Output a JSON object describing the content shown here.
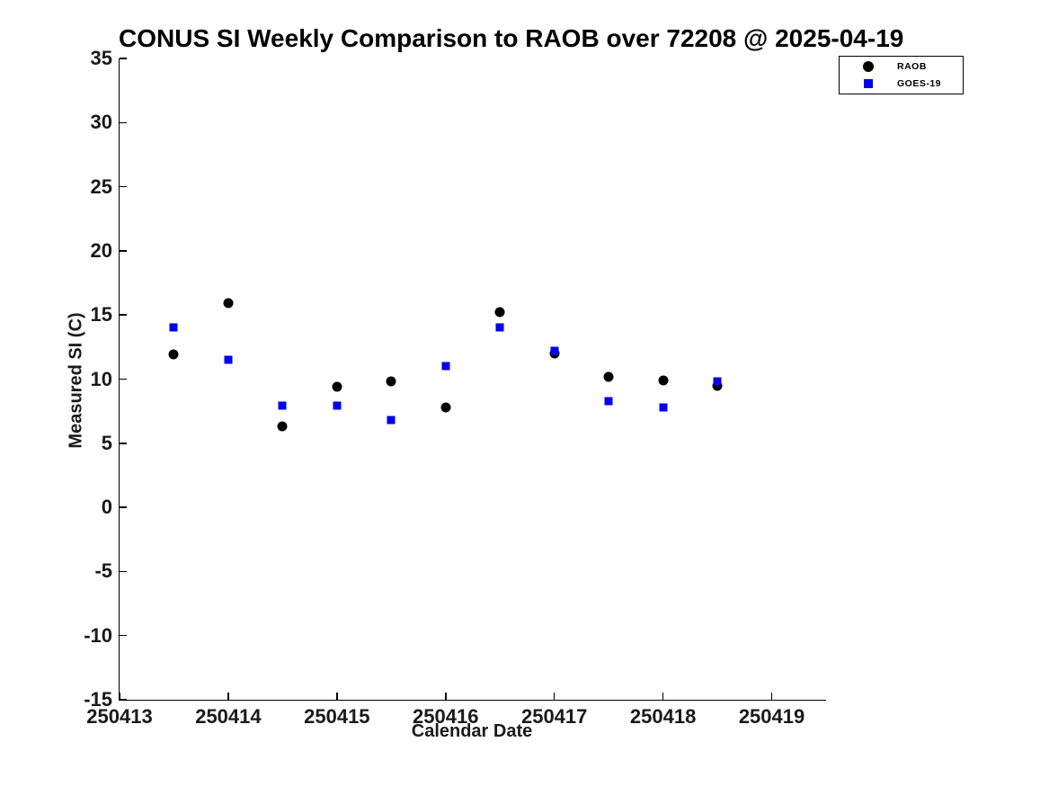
{
  "chart_data": {
    "type": "scatter",
    "title": "CONUS SI Weekly Comparison to RAOB over 72208 @ 2025-04-19",
    "xlabel": "Calendar Date",
    "ylabel": "Measured SI (C)",
    "xlim": [
      250413,
      250419.5
    ],
    "ylim": [
      -15,
      35
    ],
    "x_ticks": [
      250413,
      250414,
      250415,
      250416,
      250417,
      250418,
      250419
    ],
    "x_tick_labels": [
      "250413",
      "250414",
      "250415",
      "250416",
      "250417",
      "250418",
      "250419"
    ],
    "y_ticks": [
      35,
      30,
      25,
      20,
      15,
      10,
      5,
      0,
      -5,
      -10,
      -15
    ],
    "y_tick_labels": [
      "35",
      "30",
      "25",
      "20",
      "15",
      "10",
      "5",
      "0",
      "-5",
      "-10",
      "-15"
    ],
    "grid": false,
    "legend_position": "top-right",
    "axis_color": "#000000",
    "background_color": "#ffffff",
    "series": [
      {
        "name": "RAOB",
        "marker": "circle",
        "color": "#000000",
        "x": [
          250413.5,
          250414.0,
          250414.5,
          250415.0,
          250415.5,
          250416.0,
          250416.5,
          250417.0,
          250417.5,
          250418.0,
          250418.5
        ],
        "y": [
          11.9,
          15.9,
          6.3,
          9.4,
          9.8,
          7.8,
          15.2,
          12.0,
          10.2,
          9.9,
          9.5
        ]
      },
      {
        "name": "GOES-19",
        "marker": "square",
        "color": "#0000ee",
        "x": [
          250413.5,
          250414.0,
          250414.5,
          250415.0,
          250415.5,
          250416.0,
          250416.5,
          250417.0,
          250417.5,
          250418.0,
          250418.5
        ],
        "y": [
          14.0,
          11.5,
          7.9,
          7.9,
          6.8,
          11.0,
          14.0,
          12.2,
          8.3,
          7.8,
          9.8
        ]
      }
    ]
  }
}
